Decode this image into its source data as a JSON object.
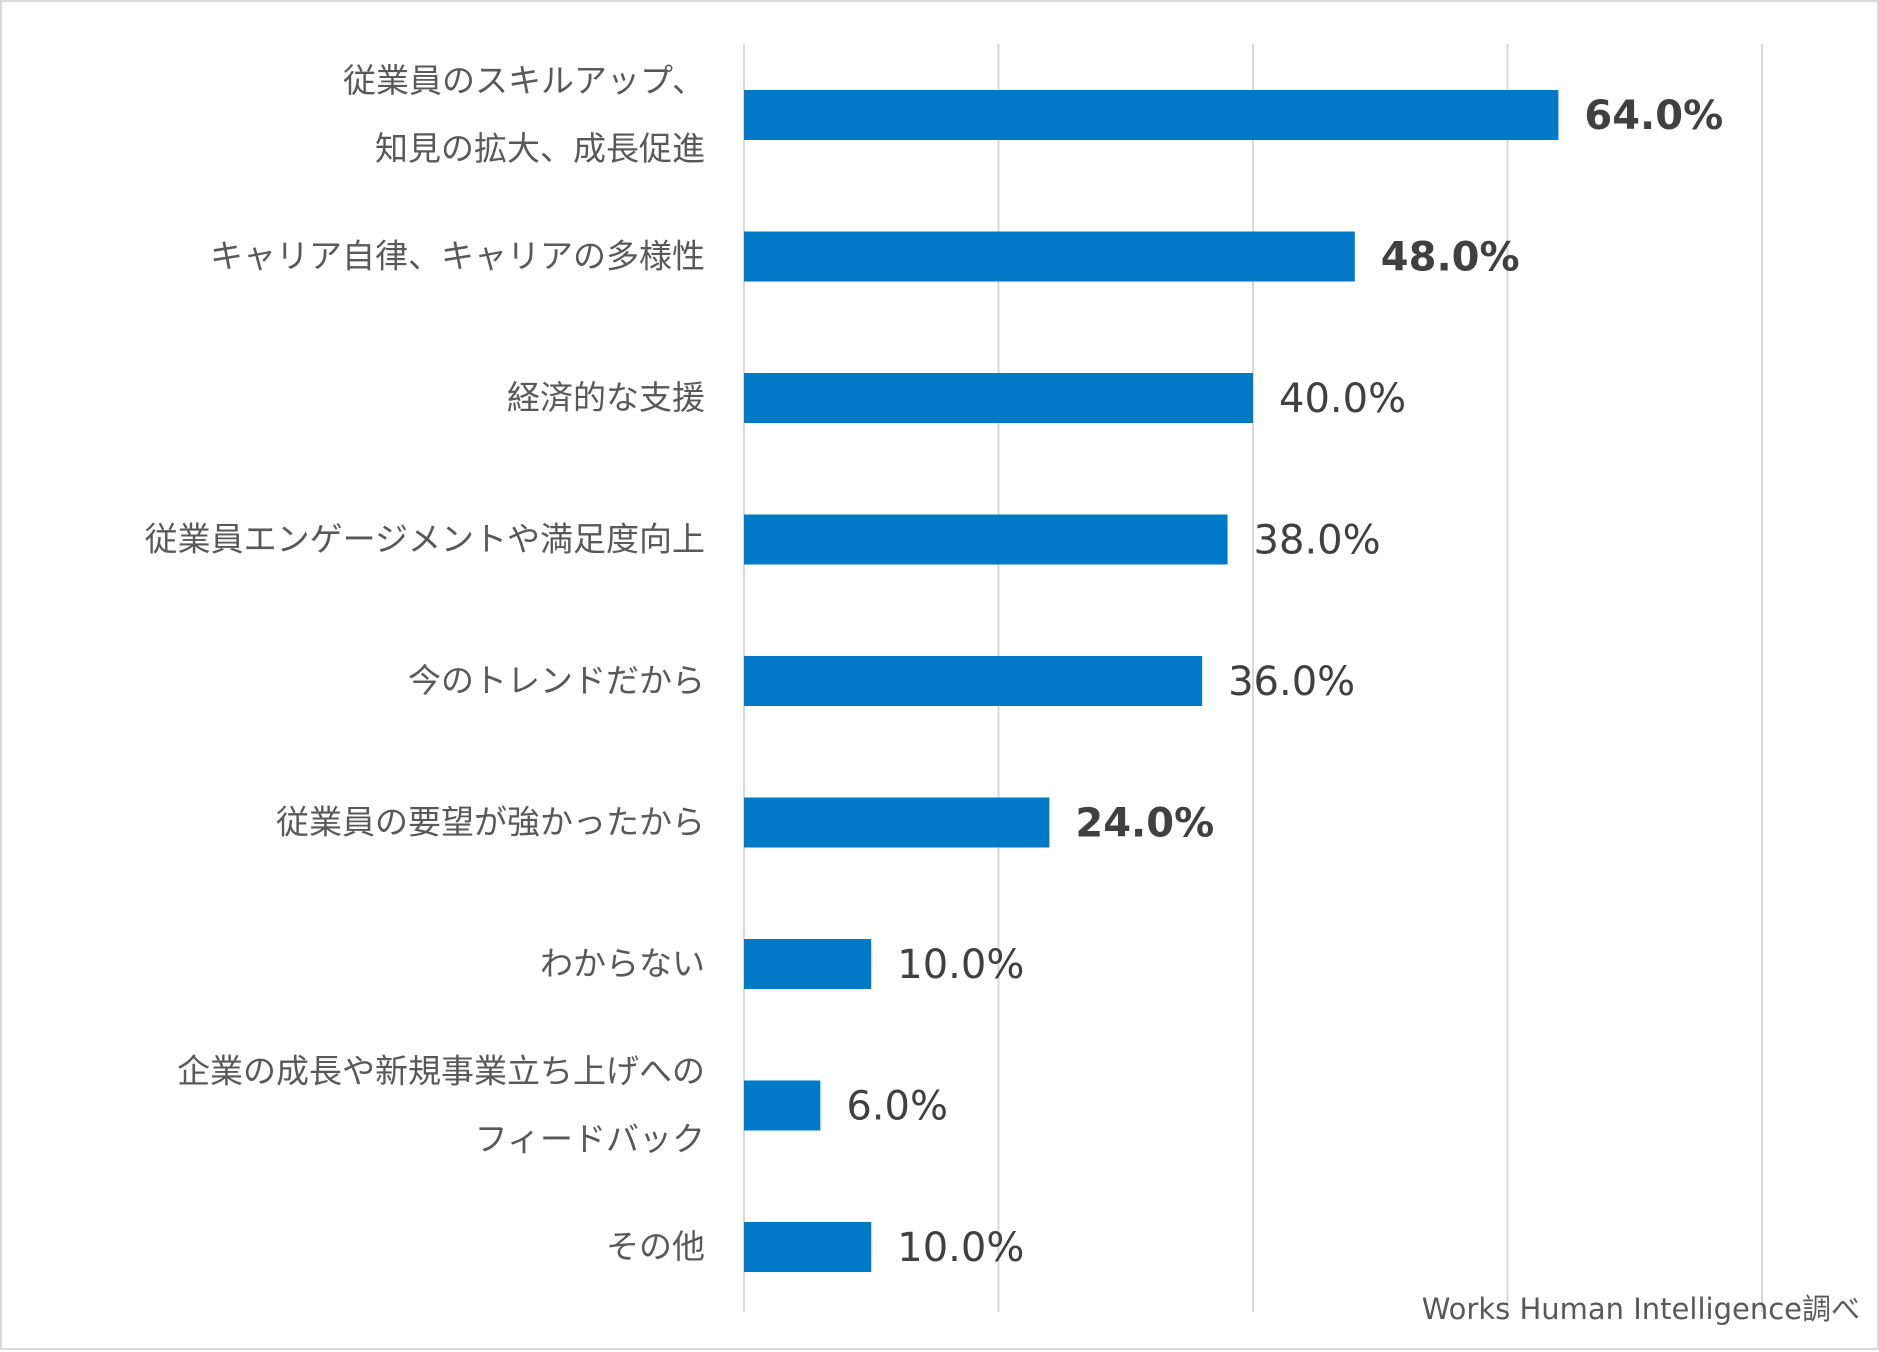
{
  "chart_data": {
    "type": "bar",
    "orientation": "horizontal",
    "title": "",
    "categories": [
      [
        "従業員のスキルアップ、",
        "知見の拡大、成長促進"
      ],
      [
        "キャリア自律、キャリアの多様性"
      ],
      [
        "経済的な支援"
      ],
      [
        "従業員エンゲージメントや満足度向上"
      ],
      [
        "今のトレンドだから"
      ],
      [
        "従業員の要望が強かったから"
      ],
      [
        "わからない"
      ],
      [
        "企業の成長や新規事業立ち上げへの",
        "フィードバック"
      ],
      [
        "その他"
      ]
    ],
    "values": [
      64.0,
      48.0,
      40.0,
      38.0,
      36.0,
      24.0,
      10.0,
      6.0,
      10.0
    ],
    "value_labels": [
      "64.0%",
      "48.0%",
      "40.0%",
      "38.0%",
      "36.0%",
      "24.0%",
      "10.0%",
      "6.0%",
      "10.0%"
    ],
    "bold_labels": [
      true,
      true,
      false,
      false,
      false,
      true,
      false,
      false,
      false
    ],
    "xlim": [
      0,
      80
    ],
    "grid_step": 20,
    "grid": true,
    "legend": "none",
    "bar_color": "#0079c6"
  },
  "source_note": "Works Human Intelligence調べ"
}
